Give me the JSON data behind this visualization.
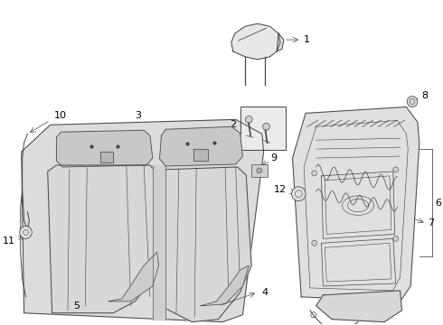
{
  "bg_color": "#ffffff",
  "line_color": "#444444",
  "fill_color": "#e8e8e8",
  "fill_dark": "#d0d0d0",
  "fill_light": "#f0f0f0",
  "seat_bg": "#dcdcdc"
}
